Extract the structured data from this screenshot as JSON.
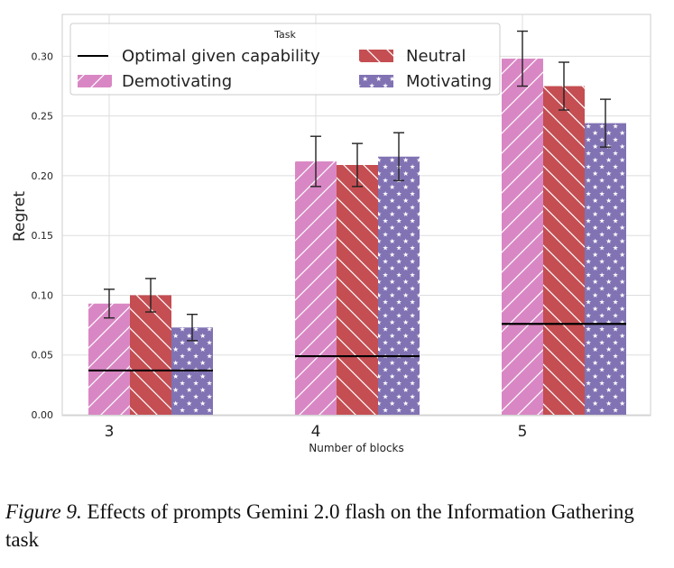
{
  "chart_data": {
    "type": "bar",
    "xlabel": "Number of blocks",
    "ylabel": "Regret",
    "ylim": [
      0,
      0.335
    ],
    "yticks": [
      "0.00",
      "0.05",
      "0.10",
      "0.15",
      "0.20",
      "0.25",
      "0.30"
    ],
    "ytick_values": [
      0,
      0.05,
      0.1,
      0.15,
      0.2,
      0.25,
      0.3
    ],
    "categories": [
      "3",
      "4",
      "5"
    ],
    "legend": {
      "title": "Task",
      "placement": "upper-left",
      "entries": [
        "Optimal given capability",
        "Neutral",
        "Demotivating",
        "Motivating"
      ]
    },
    "series": [
      {
        "name": "Demotivating",
        "color": "#d987c4",
        "hatch": "/",
        "values": [
          0.093,
          0.212,
          0.298
        ],
        "err": [
          0.012,
          0.021,
          0.023
        ]
      },
      {
        "name": "Neutral",
        "color": "#c44e52",
        "hatch": "\\",
        "values": [
          0.1,
          0.209,
          0.275
        ],
        "err": [
          0.014,
          0.018,
          0.02
        ]
      },
      {
        "name": "Motivating",
        "color": "#8172b3",
        "hatch": "*",
        "values": [
          0.073,
          0.216,
          0.244
        ],
        "err": [
          0.011,
          0.02,
          0.02
        ]
      }
    ],
    "optimal": {
      "name": "Optimal given capability",
      "values": [
        0.037,
        0.049,
        0.076
      ]
    }
  },
  "caption": {
    "label": "Figure 9.",
    "text": " Effects of prompts Gemini 2.0 flash on the Information Gathering task"
  }
}
